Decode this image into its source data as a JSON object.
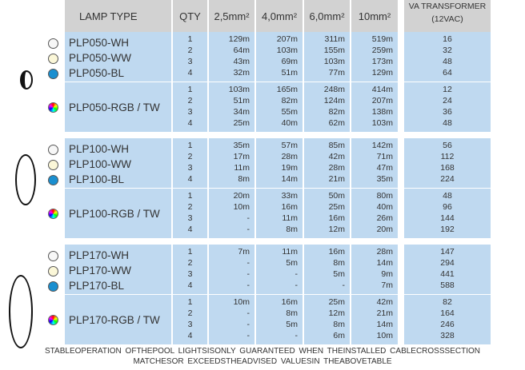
{
  "header": {
    "lamp_type": "LAMP TYPE",
    "qty": "QTY",
    "c25": "2,5mm²",
    "c40": "4,0mm²",
    "c60": "6,0mm²",
    "c10": "10mm²",
    "va_line1": "VA TRANSFORMER",
    "va_line2": "(12VAC)"
  },
  "colors": {
    "cell": "#bfd9f0",
    "header": "#d2d2d2",
    "white": "#f7f7f7",
    "warm_white": "#fbf7d8",
    "blue": "#1a8fd0"
  },
  "groups": [
    {
      "mono": {
        "names": [
          "PLP050-WH",
          "PLP050-WW",
          "PLP050-BL"
        ],
        "rows": [
          [
            "1",
            "129m",
            "207m",
            "311m",
            "519m",
            "16"
          ],
          [
            "2",
            "64m",
            "103m",
            "155m",
            "259m",
            "32"
          ],
          [
            "3",
            "43m",
            "69m",
            "103m",
            "173m",
            "48"
          ],
          [
            "4",
            "32m",
            "51m",
            "77m",
            "129m",
            "64"
          ]
        ]
      },
      "rgb": {
        "name": "PLP050-RGB / TW",
        "rows": [
          [
            "1",
            "103m",
            "165m",
            "248m",
            "414m",
            "12"
          ],
          [
            "2",
            "51m",
            "82m",
            "124m",
            "207m",
            "24"
          ],
          [
            "3",
            "34m",
            "55m",
            "82m",
            "138m",
            "36"
          ],
          [
            "4",
            "25m",
            "40m",
            "62m",
            "103m",
            "48"
          ]
        ]
      }
    },
    {
      "mono": {
        "names": [
          "PLP100-WH",
          "PLP100-WW",
          "PLP100-BL"
        ],
        "rows": [
          [
            "1",
            "35m",
            "57m",
            "85m",
            "142m",
            "56"
          ],
          [
            "2",
            "17m",
            "28m",
            "42m",
            "71m",
            "112"
          ],
          [
            "3",
            "11m",
            "19m",
            "28m",
            "47m",
            "168"
          ],
          [
            "4",
            "8m",
            "14m",
            "21m",
            "35m",
            "224"
          ]
        ]
      },
      "rgb": {
        "name": "PLP100-RGB / TW",
        "rows": [
          [
            "1",
            "20m",
            "33m",
            "50m",
            "80m",
            "48"
          ],
          [
            "2",
            "10m",
            "16m",
            "25m",
            "40m",
            "96"
          ],
          [
            "3",
            "-",
            "11m",
            "16m",
            "26m",
            "144"
          ],
          [
            "4",
            "-",
            "8m",
            "12m",
            "20m",
            "192"
          ]
        ]
      }
    },
    {
      "mono": {
        "names": [
          "PLP170-WH",
          "PLP170-WW",
          "PLP170-BL"
        ],
        "rows": [
          [
            "1",
            "7m",
            "11m",
            "16m",
            "28m",
            "147"
          ],
          [
            "2",
            "-",
            "5m",
            "8m",
            "14m",
            "294"
          ],
          [
            "3",
            "-",
            "-",
            "5m",
            "9m",
            "441"
          ],
          [
            "4",
            "-",
            "-",
            "-",
            "7m",
            "588"
          ]
        ]
      },
      "rgb": {
        "name": "PLP170-RGB / TW",
        "rows": [
          [
            "1",
            "10m",
            "16m",
            "25m",
            "42m",
            "82"
          ],
          [
            "2",
            "-",
            "8m",
            "12m",
            "21m",
            "164"
          ],
          [
            "3",
            "-",
            "5m",
            "8m",
            "14m",
            "246"
          ],
          [
            "4",
            "-",
            "-",
            "6m",
            "10m",
            "328"
          ]
        ]
      }
    }
  ],
  "footer": {
    "line1": "STABLEOPERATION OFTHEPOOL LIGHTSISONLY GUARANTEED WHEN THEINSTALLED CABLECROSSSECTION",
    "line2": "MATCHESOR EXCEEDSTHEADVISED VALUESIN THEABOVETABLE"
  }
}
